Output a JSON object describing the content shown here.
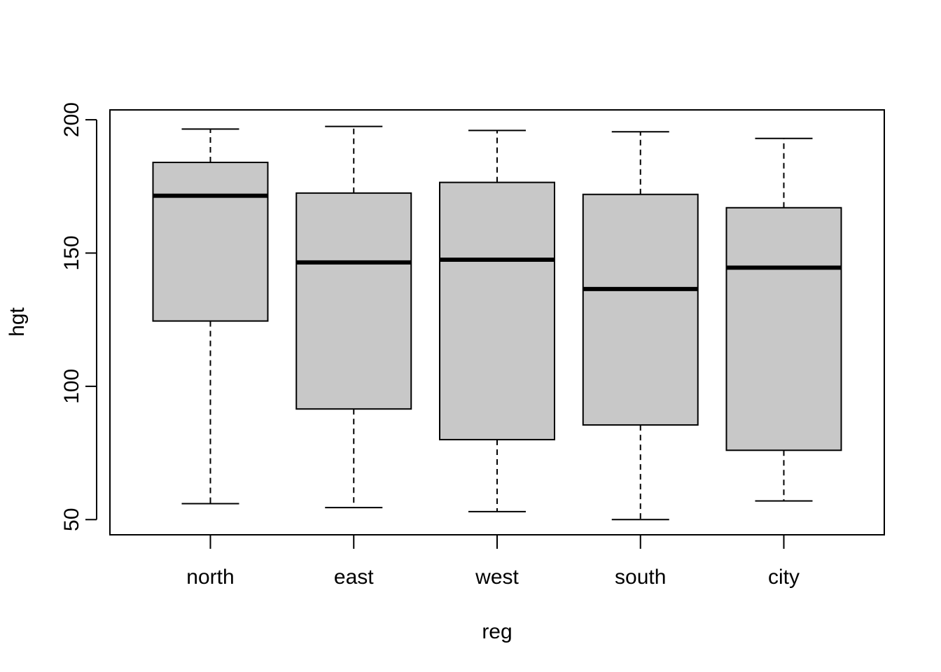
{
  "chart_data": {
    "type": "boxplot",
    "title": "",
    "xlabel": "reg",
    "ylabel": "hgt",
    "ylim": [
      44.3,
      203.7
    ],
    "yticks": [
      50,
      100,
      150,
      200
    ],
    "grid": false,
    "legend": "none",
    "colors": {
      "box_fill": "#c8c8c8",
      "stroke": "#000000",
      "background": "#ffffff"
    },
    "categories": [
      "north",
      "east",
      "west",
      "south",
      "city"
    ],
    "boxes": [
      {
        "name": "north",
        "min": 56,
        "q1": 124.5,
        "median": 171.5,
        "q3": 184,
        "max": 196.5
      },
      {
        "name": "east",
        "min": 54.5,
        "q1": 91.5,
        "median": 146.5,
        "q3": 172.5,
        "max": 197.5
      },
      {
        "name": "west",
        "min": 53,
        "q1": 80,
        "median": 147.5,
        "q3": 176.5,
        "max": 196
      },
      {
        "name": "south",
        "min": 50,
        "q1": 85.5,
        "median": 136.5,
        "q3": 172,
        "max": 195.5
      },
      {
        "name": "city",
        "min": 57,
        "q1": 76,
        "median": 144.5,
        "q3": 167,
        "max": 193
      }
    ]
  }
}
